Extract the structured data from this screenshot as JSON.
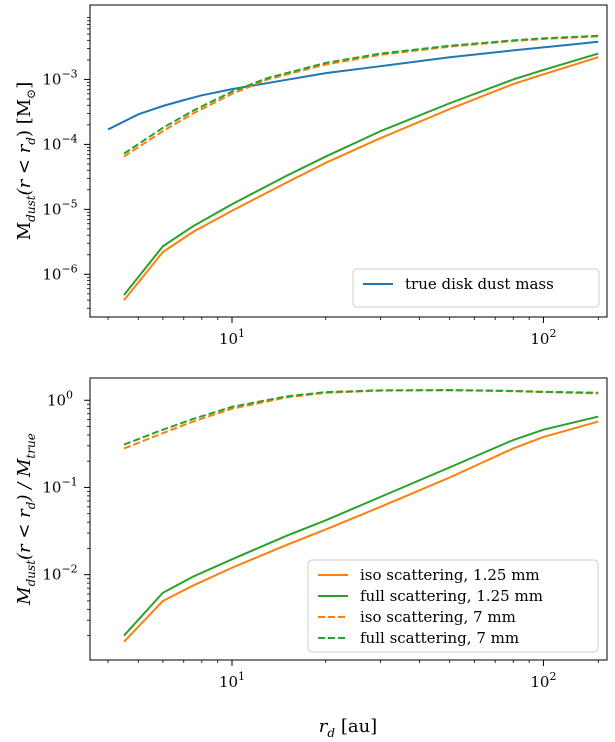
{
  "chart_data": [
    {
      "type": "line",
      "xscale": "log",
      "yscale": "log",
      "xlim": [
        3.5,
        160
      ],
      "ylim": [
        2.2e-07,
        0.014
      ],
      "xticks": [
        {
          "value": 10,
          "label": "10^1"
        },
        {
          "value": 100,
          "label": "10^2"
        }
      ],
      "yticks": [
        {
          "value": 1e-06,
          "label": "10^-6"
        },
        {
          "value": 1e-05,
          "label": "10^-5"
        },
        {
          "value": 0.0001,
          "label": "10^-4"
        },
        {
          "value": 0.001,
          "label": "10^-3"
        }
      ],
      "ylabel": "M_dust(r < r_d) [M_⊙]",
      "xlabel": "",
      "legend": {
        "placement": "lower-right",
        "entries": [
          "true disk dust mass"
        ]
      },
      "series": [
        {
          "name": "true disk dust mass",
          "color": "#1f77b4",
          "style": "solid",
          "x": [
            4.0,
            5,
            6,
            7,
            8,
            10,
            13,
            20,
            30,
            50,
            80,
            120,
            150
          ],
          "y": [
            0.00017,
            0.00029,
            0.00039,
            0.00048,
            0.00057,
            0.00071,
            0.00088,
            0.00125,
            0.0016,
            0.0022,
            0.0028,
            0.0034,
            0.0038
          ]
        },
        {
          "name": "",
          "color": "#ff7f0e",
          "style": "solid",
          "x": [
            4.5,
            6,
            7.5,
            10,
            15,
            20,
            30,
            50,
            80,
            100,
            150
          ],
          "y": [
            4e-07,
            2.2e-06,
            4.5e-06,
            9.5e-06,
            2.6e-05,
            5.2e-05,
            0.000125,
            0.00035,
            0.00085,
            0.0012,
            0.0022
          ]
        },
        {
          "name": "",
          "color": "#2ca02c",
          "style": "solid",
          "x": [
            4.5,
            6,
            7.5,
            10,
            15,
            20,
            30,
            50,
            80,
            100,
            150
          ],
          "y": [
            4.8e-07,
            2.7e-06,
            5.5e-06,
            1.2e-05,
            3.3e-05,
            6.5e-05,
            0.00016,
            0.00043,
            0.001,
            0.0014,
            0.0025
          ]
        },
        {
          "name": "",
          "color": "#ff7f0e",
          "style": "dashed",
          "x": [
            4.5,
            6,
            7.5,
            10,
            13,
            20,
            30,
            50,
            80,
            100,
            150
          ],
          "y": [
            6.5e-05,
            0.00016,
            0.0003,
            0.0006,
            0.001,
            0.0017,
            0.0024,
            0.0032,
            0.0039,
            0.0042,
            0.0046
          ]
        },
        {
          "name": "",
          "color": "#2ca02c",
          "style": "dashed",
          "x": [
            4.5,
            6,
            7.5,
            10,
            13,
            20,
            30,
            50,
            80,
            100,
            150
          ],
          "y": [
            7.2e-05,
            0.00018,
            0.00033,
            0.00065,
            0.00105,
            0.0018,
            0.0025,
            0.0033,
            0.004,
            0.0043,
            0.0047
          ]
        }
      ]
    },
    {
      "type": "line",
      "xscale": "log",
      "yscale": "log",
      "xlim": [
        3.5,
        160
      ],
      "ylim": [
        0.00105,
        1.8
      ],
      "xticks": [
        {
          "value": 10,
          "label": "10^1"
        },
        {
          "value": 100,
          "label": "10^2"
        }
      ],
      "yticks": [
        {
          "value": 0.01,
          "label": "10^-2"
        },
        {
          "value": 0.1,
          "label": "10^-1"
        },
        {
          "value": 1,
          "label": "10^0"
        }
      ],
      "ylabel": "M_dust(r < r_d) / M_true",
      "xlabel": "r_d [au]",
      "legend": {
        "placement": "lower-right",
        "entries": [
          "iso scattering, 1.25 mm",
          "full scattering, 1.25 mm",
          "iso scattering, 7 mm",
          "full scattering, 7 mm"
        ]
      },
      "series": [
        {
          "name": "iso scattering, 1.25 mm",
          "color": "#ff7f0e",
          "style": "solid",
          "x": [
            4.5,
            6,
            7.5,
            10,
            15,
            20,
            30,
            50,
            80,
            100,
            150
          ],
          "y": [
            0.0017,
            0.005,
            0.0075,
            0.012,
            0.022,
            0.033,
            0.06,
            0.13,
            0.28,
            0.38,
            0.57
          ]
        },
        {
          "name": "full scattering, 1.25 mm",
          "color": "#2ca02c",
          "style": "solid",
          "x": [
            4.5,
            6,
            7.5,
            10,
            15,
            20,
            30,
            50,
            80,
            100,
            150
          ],
          "y": [
            0.002,
            0.0062,
            0.0095,
            0.015,
            0.028,
            0.042,
            0.078,
            0.17,
            0.35,
            0.46,
            0.65
          ]
        },
        {
          "name": "iso scattering, 7 mm",
          "color": "#ff7f0e",
          "style": "dashed",
          "x": [
            4.5,
            6,
            7.5,
            10,
            15,
            20,
            30,
            50,
            80,
            100,
            150
          ],
          "y": [
            0.28,
            0.42,
            0.57,
            0.8,
            1.08,
            1.22,
            1.29,
            1.3,
            1.27,
            1.24,
            1.2
          ]
        },
        {
          "name": "full scattering, 7 mm",
          "color": "#2ca02c",
          "style": "dashed",
          "x": [
            4.5,
            6,
            7.5,
            10,
            15,
            20,
            30,
            50,
            80,
            100,
            150
          ],
          "y": [
            0.31,
            0.46,
            0.61,
            0.84,
            1.11,
            1.24,
            1.3,
            1.31,
            1.28,
            1.25,
            1.22
          ]
        }
      ]
    }
  ]
}
